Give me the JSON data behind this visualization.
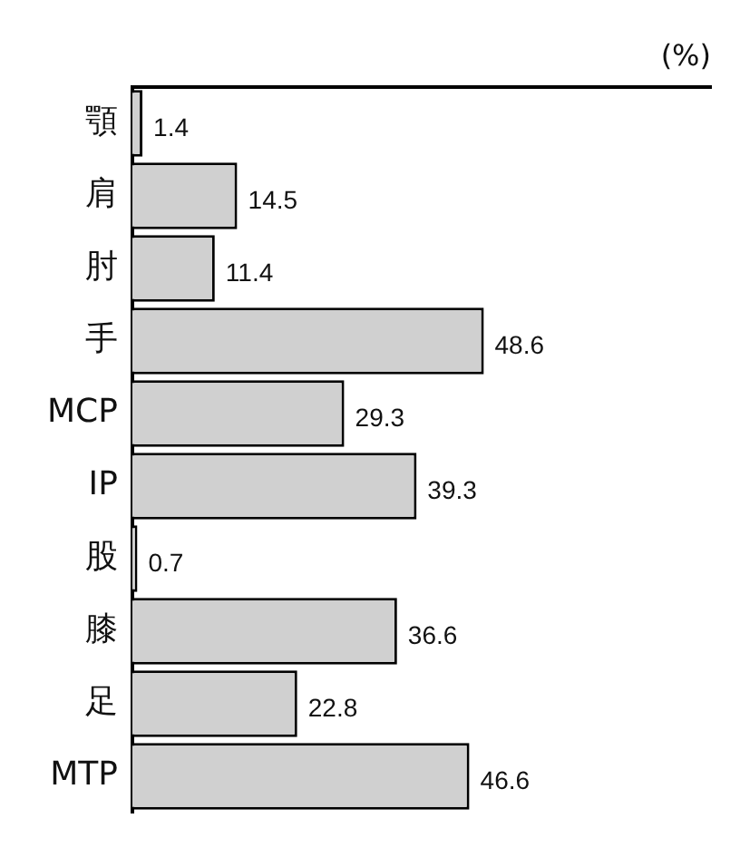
{
  "chart_data": {
    "type": "bar",
    "orientation": "horizontal",
    "annotations": [
      "(%)"
    ],
    "categories": [
      "顎",
      "肩",
      "肘",
      "手",
      "MCP",
      "IP",
      "股",
      "膝",
      "足",
      "MTP"
    ],
    "values": [
      1.4,
      14.5,
      11.4,
      48.6,
      29.3,
      39.3,
      0.7,
      36.6,
      22.8,
      46.6
    ],
    "color": "#d0d0d0",
    "data_labels": true,
    "grid": false,
    "legend": false
  }
}
